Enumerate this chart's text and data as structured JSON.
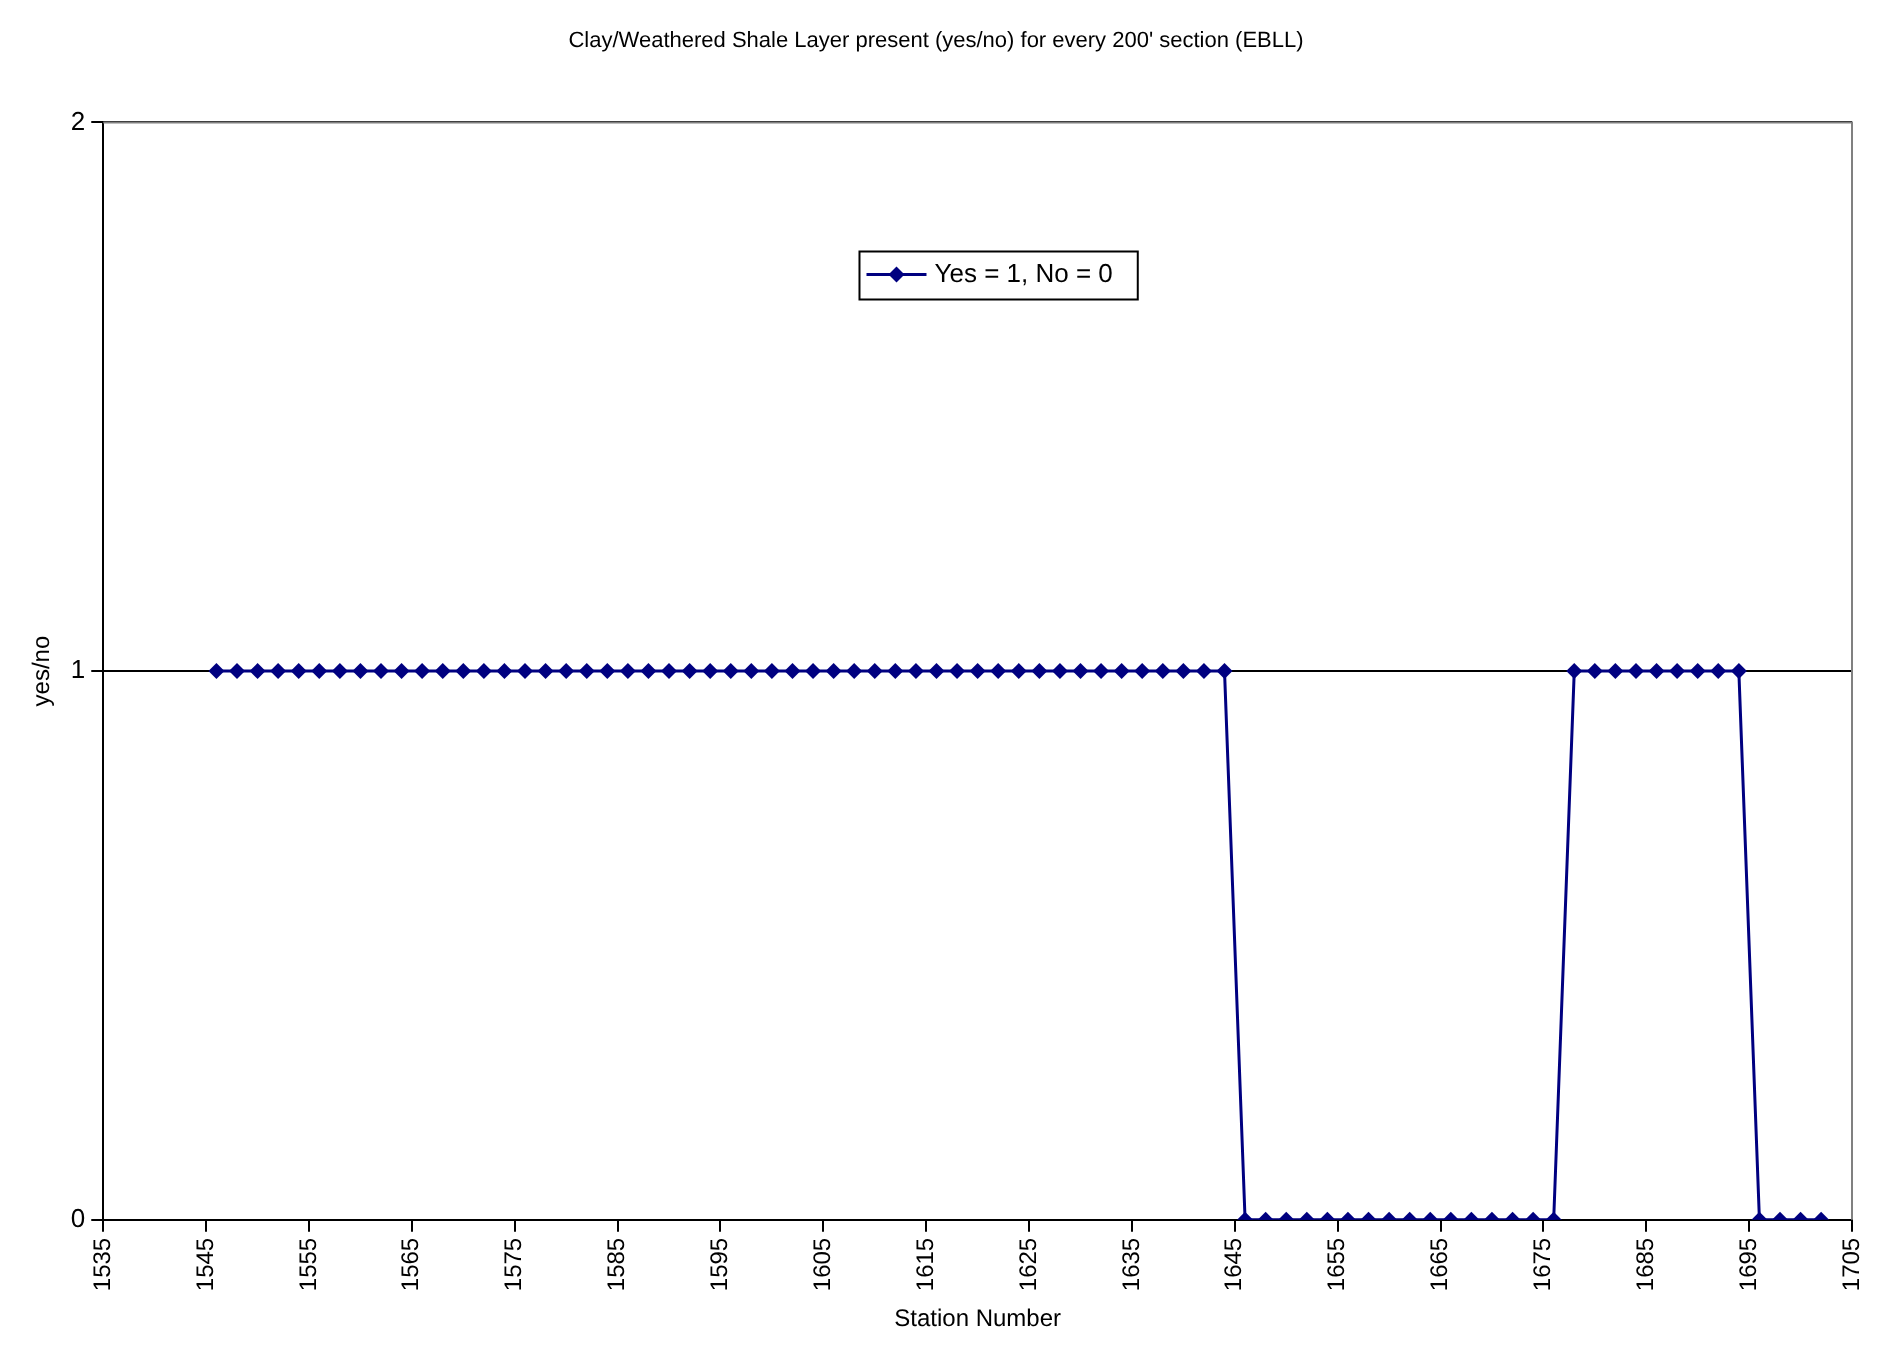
{
  "chart_data": {
    "type": "line",
    "title": "Clay/Weathered Shale Layer present (yes/no) for every 200' section (EBLL)",
    "xlabel": "Station Number",
    "ylabel": "yes/no",
    "x": [
      1546,
      1548,
      1550,
      1552,
      1554,
      1556,
      1558,
      1560,
      1562,
      1564,
      1566,
      1568,
      1570,
      1572,
      1574,
      1576,
      1578,
      1580,
      1582,
      1584,
      1586,
      1588,
      1590,
      1592,
      1594,
      1596,
      1598,
      1600,
      1602,
      1604,
      1606,
      1608,
      1610,
      1612,
      1614,
      1616,
      1618,
      1620,
      1622,
      1624,
      1626,
      1628,
      1630,
      1632,
      1634,
      1636,
      1638,
      1640,
      1642,
      1644,
      1646,
      1648,
      1650,
      1652,
      1654,
      1656,
      1658,
      1660,
      1662,
      1664,
      1666,
      1668,
      1670,
      1672,
      1674,
      1676,
      1678,
      1680,
      1682,
      1684,
      1686,
      1688,
      1690,
      1692,
      1694,
      1696,
      1698,
      1700,
      1702
    ],
    "series": [
      {
        "name": "Yes = 1, No = 0",
        "color": "#000080",
        "values": [
          1,
          1,
          1,
          1,
          1,
          1,
          1,
          1,
          1,
          1,
          1,
          1,
          1,
          1,
          1,
          1,
          1,
          1,
          1,
          1,
          1,
          1,
          1,
          1,
          1,
          1,
          1,
          1,
          1,
          1,
          1,
          1,
          1,
          1,
          1,
          1,
          1,
          1,
          1,
          1,
          1,
          1,
          1,
          1,
          1,
          1,
          1,
          1,
          1,
          1,
          0,
          0,
          0,
          0,
          0,
          0,
          0,
          0,
          0,
          0,
          0,
          0,
          0,
          0,
          0,
          0,
          1,
          1,
          1,
          1,
          1,
          1,
          1,
          1,
          1,
          0,
          0,
          0,
          0
        ]
      }
    ],
    "xlim": [
      1535,
      1705
    ],
    "xticks": [
      1535,
      1545,
      1555,
      1565,
      1575,
      1585,
      1595,
      1605,
      1615,
      1625,
      1635,
      1645,
      1655,
      1665,
      1675,
      1685,
      1695,
      1705
    ],
    "ylim": [
      0,
      2
    ],
    "yticks": [
      0,
      1,
      2
    ],
    "grid": "y",
    "legend": "top",
    "marker": "diamond",
    "line_style": "solid"
  }
}
